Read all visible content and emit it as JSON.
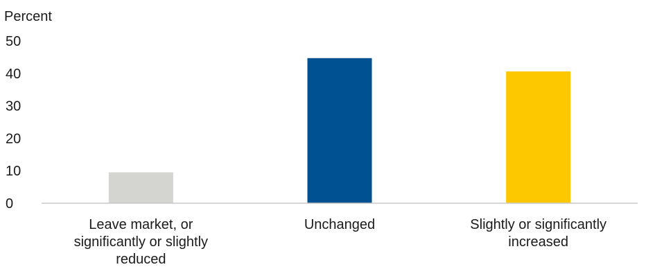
{
  "chart_data": {
    "type": "bar",
    "title": "",
    "xlabel": "",
    "ylabel": "Percent",
    "ylim": [
      0,
      50
    ],
    "yticks": [
      0,
      10,
      20,
      30,
      40,
      50
    ],
    "grid": false,
    "categories": [
      "Leave market, or significantly or slightly reduced",
      "Unchanged",
      "Slightly or significantly increased"
    ],
    "category_lines": [
      [
        "Leave market, or",
        "significantly or slightly",
        "reduced"
      ],
      [
        "Unchanged"
      ],
      [
        "Slightly or significantly",
        "increased"
      ]
    ],
    "values": [
      9.5,
      44.7,
      40.6
    ],
    "colors": [
      "#d4d4d0",
      "#005192",
      "#fdc800"
    ]
  }
}
